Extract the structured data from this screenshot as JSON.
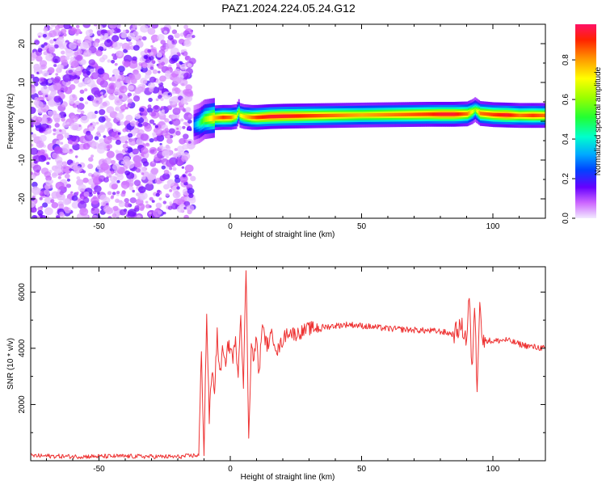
{
  "title": "PAZ1.2024.224.05.24.G12",
  "chart_data": [
    {
      "type": "heatmap",
      "xlabel": "Height of straight line (km)",
      "ylabel": "Frequency (Hz)",
      "xlim": [
        -76,
        120
      ],
      "ylim": [
        -25,
        25
      ],
      "xticks": [
        -50,
        0,
        50,
        100
      ],
      "yticks": [
        -20,
        -10,
        0,
        10,
        20
      ],
      "colorbar": {
        "label": "Normalized spectral amplitude",
        "range": [
          0,
          0.98
        ],
        "ticks": [
          0.0,
          0.2,
          0.4,
          0.6,
          0.8
        ],
        "tick_labels": [
          "0.0",
          "0.2",
          "0.4",
          "0.6",
          "0.8"
        ]
      },
      "noise_region": {
        "x": [
          -76,
          -14
        ],
        "y": [
          -25,
          25
        ],
        "amplitude_range": [
          0.02,
          0.18
        ]
      },
      "ridge": {
        "x": [
          -14,
          -12,
          -10,
          -6,
          -3,
          0,
          2,
          3,
          3.5,
          5,
          8,
          10,
          15,
          20,
          30,
          50,
          75,
          80,
          85,
          90,
          92,
          93,
          95,
          100,
          105,
          110,
          115,
          120
        ],
        "center_freq": [
          -1,
          -0.5,
          0.5,
          0.9,
          1.0,
          1.0,
          1.2,
          2.5,
          1.5,
          1.2,
          1.0,
          1.0,
          1.2,
          1.3,
          1.4,
          1.6,
          1.8,
          1.8,
          1.8,
          1.9,
          2.5,
          3,
          2.0,
          1.7,
          1.6,
          1.5,
          1.5,
          1.5
        ],
        "peak_amplitude": [
          0.3,
          0.45,
          0.6,
          0.8,
          0.9,
          0.85,
          0.7,
          0.6,
          0.7,
          0.75,
          0.85,
          0.9,
          0.95,
          0.95,
          0.9,
          0.8,
          0.9,
          0.95,
          0.95,
          0.85,
          0.7,
          0.6,
          0.85,
          0.9,
          0.95,
          0.85,
          0.9,
          0.85
        ]
      }
    },
    {
      "type": "line",
      "xlabel": "Height of straight line (km)",
      "ylabel": "SNR (10 * v/v)",
      "xlim": [
        -76,
        120
      ],
      "ylim": [
        0,
        6900
      ],
      "xticks": [
        -50,
        0,
        50,
        100
      ],
      "yticks": [
        2000,
        4000,
        6000
      ],
      "series": [
        {
          "color": "#ee3333",
          "x": [
            -76,
            -60,
            -40,
            -20,
            -12,
            -11,
            -10,
            -9,
            -8,
            -7,
            -6,
            -5,
            -4,
            -3,
            -2,
            -1,
            0,
            1,
            2,
            3,
            4,
            5,
            6,
            7,
            8,
            9,
            10,
            11,
            12,
            14,
            16,
            18,
            20,
            22,
            25,
            30,
            35,
            40,
            45,
            50,
            55,
            60,
            70,
            80,
            85,
            88,
            90,
            91,
            92,
            93,
            94,
            95,
            96,
            97,
            100,
            105,
            110,
            115,
            120
          ],
          "y": [
            180,
            150,
            160,
            140,
            200,
            3800,
            300,
            5200,
            1500,
            3200,
            2500,
            4500,
            3000,
            3900,
            3400,
            4100,
            4000,
            3700,
            4200,
            3200,
            5300,
            2600,
            6950,
            900,
            4100,
            3600,
            4400,
            3000,
            4800,
            4100,
            4500,
            3900,
            4300,
            4600,
            4500,
            4700,
            4750,
            4800,
            4850,
            4800,
            4750,
            4700,
            4650,
            4600,
            4500,
            4800,
            4300,
            5900,
            3100,
            5600,
            2600,
            5900,
            4200,
            4300,
            4250,
            4300,
            4150,
            4050,
            4000
          ]
        }
      ]
    }
  ]
}
